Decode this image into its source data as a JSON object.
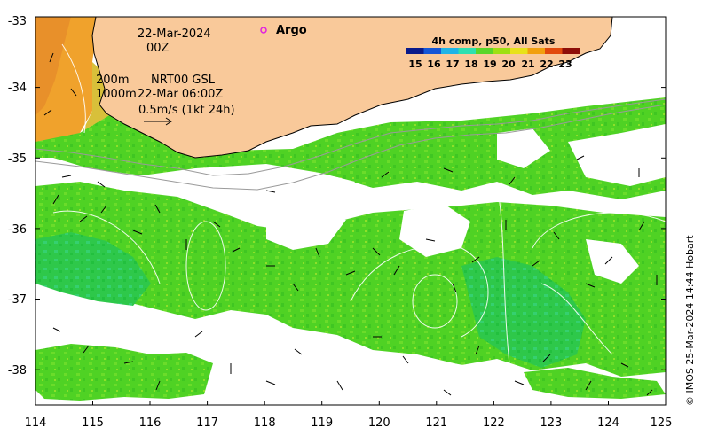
{
  "map": {
    "annotation": {
      "date": "22-Mar-2024",
      "hour": "00Z",
      "isobath_shallow": "200m",
      "isobath_deep": "1000m",
      "model_label": "NRT00 GSL",
      "model_time": "22-Mar 06:00Z",
      "vector_scale": "0.5m/s (1kt 24h)"
    },
    "argo": {
      "label": "Argo",
      "marker_color": "#e020e0",
      "lon": 118.0,
      "lat": -33.2
    },
    "legend": {
      "title": "4h comp, p50, All Sats",
      "ticks": [
        "15",
        "16",
        "17",
        "18",
        "19",
        "20",
        "21",
        "22",
        "23"
      ],
      "colors": [
        "#0a1a8a",
        "#1556d6",
        "#1fb4e6",
        "#2ee0b0",
        "#5ad62a",
        "#9ee012",
        "#e8e21a",
        "#f2a00e",
        "#e24a0c",
        "#8e0e08"
      ]
    },
    "credit": "© IMOS 25-Mar-2024 14:44 Hobart",
    "axes": {
      "x_ticks": [
        "114",
        "115",
        "116",
        "117",
        "118",
        "119",
        "120",
        "121",
        "122",
        "123",
        "124",
        "125"
      ],
      "y_ticks": [
        "-33",
        "-34",
        "-35",
        "-36",
        "-37",
        "-38"
      ],
      "x_range": [
        114,
        125
      ],
      "y_range": [
        -38.5,
        -33
      ]
    },
    "colors": {
      "land": "#f9c99a",
      "no_data": "#ffffff",
      "sst_green": "#52d81e",
      "sst_warm": "#f2a72a"
    }
  }
}
